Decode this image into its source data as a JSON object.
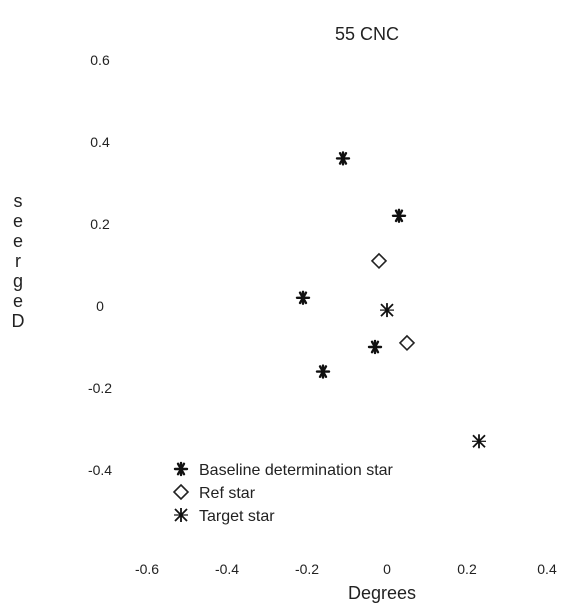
{
  "chart_data": {
    "type": "scatter",
    "title": "55 CNC",
    "xlabel": "Degrees",
    "ylabel": "seergeD",
    "xlim": [
      -0.6,
      0.4
    ],
    "ylim": [
      -0.4,
      0.6
    ],
    "xticks": [
      "-0.6",
      "-0.4",
      "-0.2",
      "0",
      "0.2",
      "0.4"
    ],
    "yticks": [
      "0.6",
      "0.4",
      "0.2",
      "0",
      "-0.2",
      "-0.4"
    ],
    "grid": false,
    "legend_position": "bottom-left",
    "series": [
      {
        "name": "Baseline determination star",
        "marker": "asterisk",
        "points": [
          {
            "x": -0.11,
            "y": 0.36
          },
          {
            "x": 0.03,
            "y": 0.22
          },
          {
            "x": -0.21,
            "y": 0.02
          },
          {
            "x": -0.03,
            "y": -0.1
          },
          {
            "x": -0.16,
            "y": -0.16
          }
        ]
      },
      {
        "name": "Ref star",
        "marker": "diamond",
        "points": [
          {
            "x": -0.02,
            "y": 0.11
          },
          {
            "x": 0.05,
            "y": -0.09
          }
        ]
      },
      {
        "name": "Target star",
        "marker": "star-x",
        "points": [
          {
            "x": 0.0,
            "y": -0.01
          },
          {
            "x": 0.23,
            "y": -0.33
          }
        ]
      }
    ]
  }
}
